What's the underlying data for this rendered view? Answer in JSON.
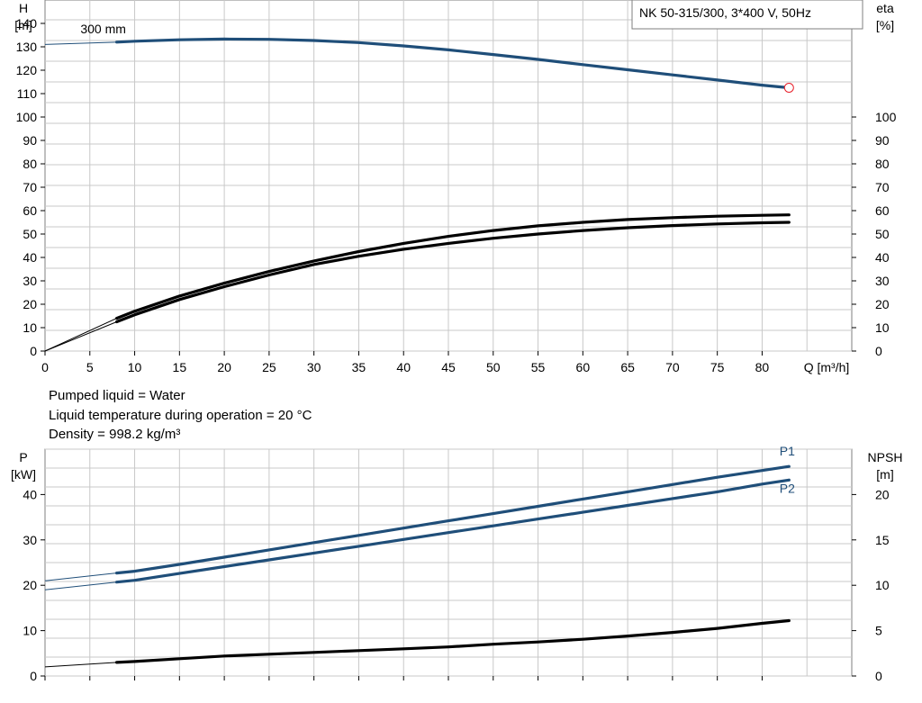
{
  "chart_data": [
    {
      "type": "line",
      "title": "NK 50-315/300, 3*400 V, 50Hz",
      "xlabel": "Q [m³/h]",
      "x_ticks": [
        0,
        5,
        10,
        15,
        20,
        25,
        30,
        35,
        40,
        45,
        50,
        55,
        60,
        65,
        70,
        75,
        80
      ],
      "xlim": [
        0,
        90
      ],
      "y_left": {
        "label_line1": "H",
        "label_line2": "[m]",
        "lim": [
          0,
          150
        ],
        "ticks": [
          0,
          10,
          20,
          30,
          40,
          50,
          60,
          70,
          80,
          90,
          100,
          110,
          120,
          130,
          140
        ]
      },
      "y_right": {
        "label_line1": "eta",
        "label_line2": "[%]",
        "lim": [
          0,
          150
        ],
        "ticks": [
          0,
          10,
          20,
          30,
          40,
          50,
          60,
          70,
          80,
          90,
          100
        ]
      },
      "grid": true,
      "series": [
        {
          "name": "300 mm",
          "axis": "left",
          "color": "#1f4e79",
          "thin": {
            "x": [
              0,
              8
            ],
            "y": [
              131,
              132
            ]
          },
          "thick": {
            "x": [
              8,
              10,
              15,
              20,
              25,
              30,
              35,
              40,
              45,
              50,
              55,
              60,
              65,
              70,
              75,
              80,
              83
            ],
            "y": [
              132,
              132.4,
              133,
              133.3,
              133.2,
              132.7,
              131.8,
              130.4,
              128.7,
              126.7,
              124.6,
              122.4,
              120.2,
              118,
              115.8,
              113.6,
              112.5
            ]
          },
          "end_marker": {
            "x": 83,
            "y": 112.5,
            "color": "#e8202a"
          }
        },
        {
          "axis": "right",
          "color": "#000000",
          "thin": {
            "x": [
              0,
              8
            ],
            "y": [
              0,
              14
            ]
          },
          "thick": {
            "x": [
              8,
              10,
              15,
              20,
              25,
              30,
              35,
              40,
              45,
              50,
              55,
              60,
              65,
              70,
              75,
              80,
              83
            ],
            "y": [
              14,
              17,
              23.5,
              29,
              34,
              38.5,
              42.5,
              46,
              49,
              51.5,
              53.5,
              55,
              56.2,
              57,
              57.6,
              58,
              58.2
            ]
          }
        },
        {
          "axis": "right",
          "color": "#000000",
          "thin": {
            "x": [
              0,
              8
            ],
            "y": [
              0,
              12.5
            ]
          },
          "thick": {
            "x": [
              8,
              10,
              15,
              20,
              25,
              30,
              35,
              40,
              45,
              50,
              55,
              60,
              65,
              70,
              75,
              80,
              83
            ],
            "y": [
              12.5,
              15.5,
              22,
              27.5,
              32.5,
              37,
              40.5,
              43.5,
              46,
              48.2,
              50,
              51.5,
              52.7,
              53.6,
              54.3,
              54.8,
              55
            ]
          }
        }
      ]
    },
    {
      "type": "line",
      "xlim": [
        0,
        90
      ],
      "x_ticks": [
        0,
        5,
        10,
        15,
        20,
        25,
        30,
        35,
        40,
        45,
        50,
        55,
        60,
        65,
        70,
        75,
        80
      ],
      "y_left": {
        "label_line1": "P",
        "label_line2": "[kW]",
        "lim": [
          0,
          50
        ],
        "ticks": [
          0,
          10,
          20,
          30,
          40
        ]
      },
      "y_right": {
        "label_line1": "NPSH",
        "label_line2": "[m]",
        "lim": [
          0,
          25
        ],
        "ticks": [
          0,
          5,
          10,
          15,
          20
        ]
      },
      "grid": true,
      "series": [
        {
          "name": "P1",
          "axis": "left",
          "color": "#1f4e79",
          "thin": {
            "x": [
              0,
              8
            ],
            "y": [
              21,
              22.7
            ]
          },
          "thick": {
            "x": [
              8,
              10,
              15,
              20,
              25,
              30,
              35,
              40,
              45,
              50,
              55,
              60,
              65,
              70,
              75,
              80,
              83
            ],
            "y": [
              22.7,
              23.1,
              24.6,
              26.2,
              27.8,
              29.4,
              31,
              32.6,
              34.2,
              35.8,
              37.4,
              39,
              40.6,
              42.2,
              43.8,
              45.3,
              46.2
            ]
          }
        },
        {
          "name": "P2",
          "axis": "left",
          "color": "#1f4e79",
          "thin": {
            "x": [
              0,
              8
            ],
            "y": [
              19,
              20.7
            ]
          },
          "thick": {
            "x": [
              8,
              10,
              15,
              20,
              25,
              30,
              35,
              40,
              45,
              50,
              55,
              60,
              65,
              70,
              75,
              80,
              83
            ],
            "y": [
              20.7,
              21.1,
              22.6,
              24.1,
              25.6,
              27.1,
              28.6,
              30.1,
              31.6,
              33.1,
              34.6,
              36.1,
              37.6,
              39.1,
              40.6,
              42.3,
              43.2
            ]
          }
        },
        {
          "axis": "right",
          "color": "#000000",
          "thin": {
            "x": [
              0,
              8
            ],
            "y": [
              1,
              1.5
            ]
          },
          "thick": {
            "x": [
              8,
              10,
              15,
              20,
              25,
              30,
              35,
              40,
              45,
              50,
              55,
              60,
              65,
              70,
              75,
              80,
              83
            ],
            "y": [
              1.5,
              1.6,
              1.9,
              2.2,
              2.4,
              2.6,
              2.8,
              3.0,
              3.2,
              3.5,
              3.75,
              4.05,
              4.4,
              4.8,
              5.25,
              5.8,
              6.1
            ]
          }
        }
      ]
    }
  ],
  "info": {
    "liquid": "Pumped liquid = Water",
    "temperature": "Liquid temperature during operation = 20 °C",
    "density": "Density = 998.2 kg/m³"
  }
}
